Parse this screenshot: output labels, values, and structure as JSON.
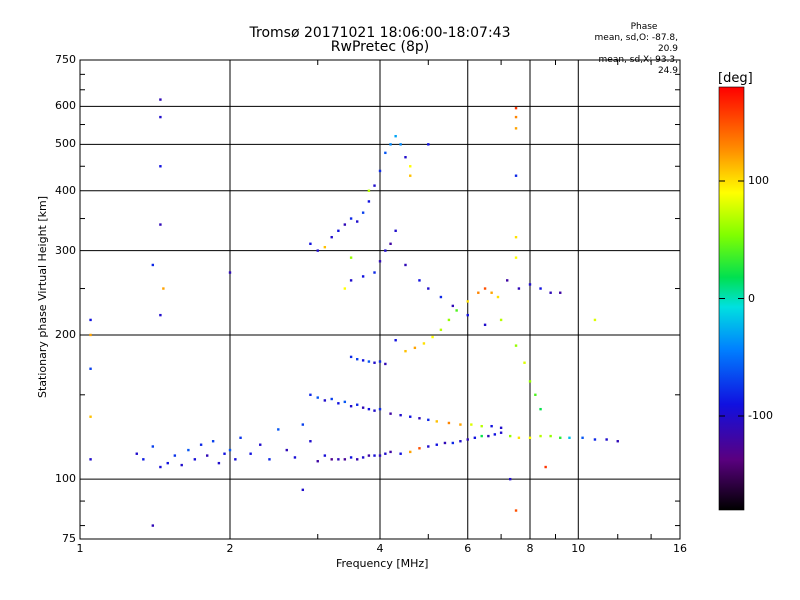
{
  "chart_data": {
    "type": "scatter",
    "title": "Tromsø 20171021 18:06:00-18:07:43",
    "subtitle": "RwPretec (8p)",
    "xlabel": "Frequency [MHz]",
    "ylabel": "Stationary phase Virtual Height [km]",
    "x_scale": "log",
    "y_scale": "log",
    "xlim": [
      1,
      16
    ],
    "ylim": [
      75,
      750
    ],
    "x_ticks": [
      1,
      2,
      4,
      6,
      8,
      10,
      16
    ],
    "y_ticks": [
      75,
      100,
      200,
      300,
      400,
      500,
      600,
      750
    ],
    "grid": true,
    "stats": {
      "header": "Phase",
      "line_o": "mean, sd,O:  -87.8, 20.9",
      "line_x": "mean, sd,X:  93.3, 24.9"
    },
    "colorbar": {
      "label": "[deg]",
      "range": [
        -180,
        180
      ],
      "ticks": [
        100,
        0,
        -100
      ]
    },
    "points": [
      [
        1.3,
        113,
        -100
      ],
      [
        1.34,
        110,
        -85
      ],
      [
        1.4,
        117,
        -70
      ],
      [
        1.45,
        106,
        -95
      ],
      [
        1.5,
        108,
        -90
      ],
      [
        1.55,
        112,
        -75
      ],
      [
        1.6,
        107,
        -100
      ],
      [
        1.65,
        115,
        -60
      ],
      [
        1.7,
        110,
        -95
      ],
      [
        1.75,
        118,
        -80
      ],
      [
        1.8,
        112,
        -110
      ],
      [
        1.85,
        120,
        -70
      ],
      [
        1.9,
        108,
        -100
      ],
      [
        1.95,
        113,
        -90
      ],
      [
        2.0,
        115,
        -60
      ],
      [
        2.05,
        110,
        -95
      ],
      [
        2.1,
        122,
        -75
      ],
      [
        2.2,
        113,
        -90
      ],
      [
        2.3,
        118,
        -100
      ],
      [
        2.4,
        110,
        -80
      ],
      [
        2.5,
        127,
        -60
      ],
      [
        2.6,
        115,
        -110
      ],
      [
        2.7,
        111,
        -95
      ],
      [
        2.8,
        130,
        -70
      ],
      [
        2.9,
        120,
        -100
      ],
      [
        3.0,
        109,
        -120
      ],
      [
        3.1,
        112,
        -95
      ],
      [
        3.2,
        110,
        -130
      ],
      [
        3.3,
        110,
        -110
      ],
      [
        3.4,
        110,
        -125
      ],
      [
        3.5,
        111,
        -90
      ],
      [
        3.6,
        110,
        -115
      ],
      [
        3.7,
        111,
        -100
      ],
      [
        3.8,
        112,
        -120
      ],
      [
        3.9,
        112,
        -95
      ],
      [
        4.0,
        112,
        -110
      ],
      [
        4.1,
        113,
        -100
      ],
      [
        4.2,
        114,
        -120
      ],
      [
        4.4,
        113,
        -90
      ],
      [
        4.6,
        114,
        120
      ],
      [
        4.8,
        116,
        150
      ],
      [
        5.0,
        117,
        -100
      ],
      [
        5.2,
        118,
        -90
      ],
      [
        5.4,
        119,
        -110
      ],
      [
        5.6,
        119,
        -80
      ],
      [
        5.8,
        120,
        -100
      ],
      [
        6.0,
        121,
        -110
      ],
      [
        6.2,
        122,
        -90
      ],
      [
        6.4,
        123,
        20
      ],
      [
        6.6,
        123,
        -110
      ],
      [
        6.8,
        124,
        -90
      ],
      [
        7.0,
        125,
        -100
      ],
      [
        7.3,
        123,
        60
      ],
      [
        7.6,
        122,
        100
      ],
      [
        8.0,
        122,
        90
      ],
      [
        8.4,
        123,
        70
      ],
      [
        8.8,
        123,
        60
      ],
      [
        9.2,
        122,
        30
      ],
      [
        9.6,
        122,
        -20
      ],
      [
        10.2,
        122,
        -60
      ],
      [
        10.8,
        121,
        -80
      ],
      [
        11.4,
        121,
        -100
      ],
      [
        12.0,
        120,
        -110
      ],
      [
        2.9,
        150,
        -80
      ],
      [
        3.0,
        148,
        -60
      ],
      [
        3.1,
        146,
        -100
      ],
      [
        3.2,
        147,
        -70
      ],
      [
        3.3,
        144,
        -90
      ],
      [
        3.4,
        145,
        -60
      ],
      [
        3.5,
        142,
        -100
      ],
      [
        3.6,
        143,
        -80
      ],
      [
        3.7,
        141,
        -110
      ],
      [
        3.8,
        140,
        -90
      ],
      [
        3.9,
        139,
        -100
      ],
      [
        4.0,
        140,
        -80
      ],
      [
        4.2,
        137,
        -120
      ],
      [
        4.4,
        136,
        -100
      ],
      [
        4.6,
        135,
        -90
      ],
      [
        4.8,
        134,
        -110
      ],
      [
        5.0,
        133,
        -80
      ],
      [
        5.2,
        132,
        110
      ],
      [
        5.5,
        131,
        130
      ],
      [
        5.8,
        130,
        120
      ],
      [
        6.1,
        130,
        80
      ],
      [
        6.4,
        129,
        70
      ],
      [
        6.7,
        129,
        -90
      ],
      [
        7.0,
        128,
        -100
      ],
      [
        3.5,
        180,
        -80
      ],
      [
        3.6,
        178,
        -70
      ],
      [
        3.7,
        177,
        -90
      ],
      [
        3.8,
        176,
        -60
      ],
      [
        3.9,
        175,
        -100
      ],
      [
        4.0,
        176,
        -80
      ],
      [
        4.1,
        174,
        -110
      ],
      [
        4.3,
        195,
        -90
      ],
      [
        4.5,
        185,
        110
      ],
      [
        4.7,
        188,
        120
      ],
      [
        4.9,
        192,
        100
      ],
      [
        5.1,
        198,
        90
      ],
      [
        5.3,
        205,
        70
      ],
      [
        5.5,
        215,
        60
      ],
      [
        5.7,
        225,
        40
      ],
      [
        6.0,
        235,
        100
      ],
      [
        6.3,
        245,
        130
      ],
      [
        6.5,
        250,
        150
      ],
      [
        6.7,
        245,
        120
      ],
      [
        6.9,
        240,
        100
      ],
      [
        3.5,
        260,
        -100
      ],
      [
        3.7,
        265,
        -90
      ],
      [
        3.9,
        270,
        -80
      ],
      [
        4.0,
        285,
        -110
      ],
      [
        4.1,
        300,
        -100
      ],
      [
        4.2,
        310,
        -120
      ],
      [
        3.2,
        320,
        -100
      ],
      [
        3.3,
        330,
        -90
      ],
      [
        3.4,
        340,
        -110
      ],
      [
        3.5,
        350,
        -80
      ],
      [
        3.6,
        345,
        -100
      ],
      [
        3.7,
        360,
        -70
      ],
      [
        3.8,
        380,
        -90
      ],
      [
        3.9,
        410,
        -100
      ],
      [
        4.0,
        440,
        -80
      ],
      [
        4.1,
        480,
        -60
      ],
      [
        4.2,
        500,
        -40
      ],
      [
        2.9,
        310,
        -90
      ],
      [
        3.0,
        300,
        -100
      ],
      [
        3.1,
        305,
        110
      ],
      [
        4.3,
        330,
        -100
      ],
      [
        4.5,
        280,
        -110
      ],
      [
        4.8,
        260,
        -90
      ],
      [
        5.0,
        250,
        -100
      ],
      [
        5.3,
        240,
        -80
      ],
      [
        5.6,
        230,
        -110
      ],
      [
        6.0,
        220,
        -90
      ],
      [
        6.5,
        210,
        -100
      ],
      [
        7.0,
        215,
        70
      ],
      [
        7.5,
        190,
        60
      ],
      [
        7.8,
        175,
        80
      ],
      [
        8.0,
        160,
        60
      ],
      [
        8.2,
        150,
        40
      ],
      [
        8.4,
        140,
        20
      ],
      [
        7.2,
        260,
        -120
      ],
      [
        7.6,
        250,
        -110
      ],
      [
        8.0,
        255,
        -100
      ],
      [
        8.4,
        250,
        -90
      ],
      [
        8.8,
        245,
        -110
      ],
      [
        9.2,
        245,
        -120
      ],
      [
        1.45,
        620,
        -110
      ],
      [
        1.45,
        570,
        -100
      ],
      [
        1.45,
        450,
        -90
      ],
      [
        1.45,
        340,
        -110
      ],
      [
        1.45,
        220,
        -100
      ],
      [
        1.4,
        280,
        -80
      ],
      [
        1.47,
        250,
        120
      ],
      [
        1.05,
        215,
        -90
      ],
      [
        1.05,
        170,
        -70
      ],
      [
        1.05,
        135,
        110
      ],
      [
        1.05,
        110,
        -100
      ],
      [
        1.05,
        200,
        120
      ],
      [
        1.4,
        80,
        -110
      ],
      [
        2.0,
        270,
        -110
      ],
      [
        2.8,
        95,
        -100
      ],
      [
        7.5,
        595,
        160
      ],
      [
        7.5,
        570,
        130
      ],
      [
        7.5,
        540,
        120
      ],
      [
        7.5,
        430,
        -80
      ],
      [
        7.5,
        320,
        100
      ],
      [
        7.5,
        290,
        90
      ],
      [
        7.5,
        86,
        150
      ],
      [
        7.3,
        100,
        -100
      ],
      [
        8.6,
        106,
        160
      ],
      [
        10.8,
        215,
        80
      ],
      [
        4.4,
        500,
        -40
      ],
      [
        4.3,
        520,
        -30
      ],
      [
        4.6,
        450,
        90
      ],
      [
        4.5,
        470,
        -100
      ],
      [
        3.8,
        400,
        70
      ],
      [
        4.6,
        430,
        110
      ],
      [
        3.5,
        290,
        60
      ],
      [
        3.4,
        250,
        90
      ],
      [
        5.0,
        500,
        -90
      ]
    ]
  }
}
